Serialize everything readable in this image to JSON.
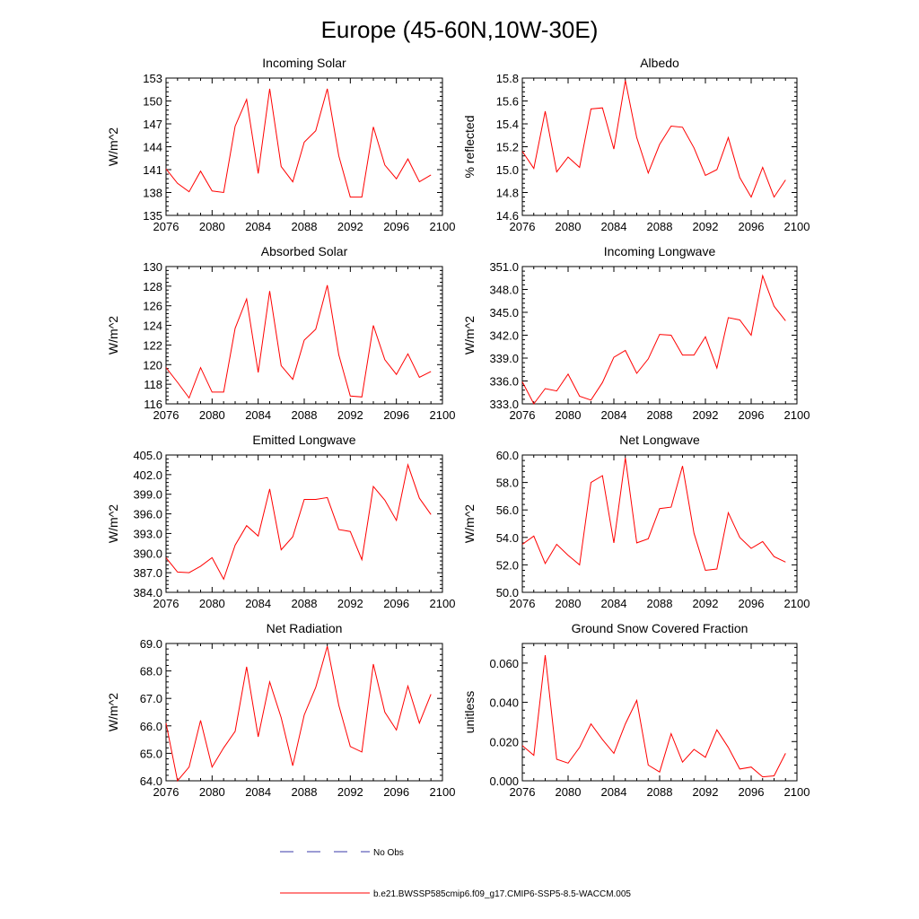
{
  "figure": {
    "title": "Europe (45-60N,10W-30E)",
    "legend": [
      {
        "label": "No Obs",
        "style": "dashed",
        "color": "#3a3aa8"
      },
      {
        "label": "b.e21.BWSSP585cmip6.f09_g17.CMIP6-SSP5-8.5-WACCM.005",
        "style": "solid",
        "color": "#ff0000"
      }
    ]
  },
  "chart_data": [
    {
      "type": "line",
      "title": "Incoming Solar",
      "xlabel": "",
      "ylabel": "W/m^2",
      "xlim": [
        2076,
        2100
      ],
      "ylim": [
        135,
        153
      ],
      "xticks": [
        "2076",
        "2080",
        "2084",
        "2088",
        "2092",
        "2096",
        "2100"
      ],
      "yticks": [
        "135",
        "138",
        "141",
        "144",
        "147",
        "150",
        "153"
      ],
      "x": [
        2076,
        2077,
        2078,
        2079,
        2080,
        2081,
        2082,
        2083,
        2084,
        2085,
        2086,
        2087,
        2088,
        2089,
        2090,
        2091,
        2092,
        2093,
        2094,
        2095,
        2096,
        2097,
        2098,
        2099
      ],
      "series": [
        {
          "name": "b.e21.BWSSP585cmip6.f09_g17.CMIP6-SSP5-8.5-WACCM.005",
          "values": [
            141.1,
            139.2,
            138.1,
            140.8,
            138.2,
            138.0,
            146.7,
            150.2,
            140.5,
            151.6,
            141.4,
            139.4,
            144.6,
            146.1,
            151.6,
            142.8,
            137.4,
            137.4,
            146.6,
            141.6,
            139.8,
            142.4,
            139.4,
            140.3
          ]
        }
      ]
    },
    {
      "type": "line",
      "title": "Albedo",
      "xlabel": "",
      "ylabel": "% reflected",
      "xlim": [
        2076,
        2100
      ],
      "ylim": [
        14.6,
        15.8
      ],
      "xticks": [
        "2076",
        "2080",
        "2084",
        "2088",
        "2092",
        "2096",
        "2100"
      ],
      "yticks": [
        "14.6",
        "14.8",
        "15.0",
        "15.2",
        "15.4",
        "15.6",
        "15.8"
      ],
      "x": [
        2076,
        2077,
        2078,
        2079,
        2080,
        2081,
        2082,
        2083,
        2084,
        2085,
        2086,
        2087,
        2088,
        2089,
        2090,
        2091,
        2092,
        2093,
        2094,
        2095,
        2096,
        2097,
        2098,
        2099
      ],
      "series": [
        {
          "name": "b.e21.BWSSP585cmip6.f09_g17.CMIP6-SSP5-8.5-WACCM.005",
          "values": [
            15.16,
            15.01,
            15.51,
            14.98,
            15.11,
            15.02,
            15.53,
            15.54,
            15.18,
            15.78,
            15.28,
            14.97,
            15.22,
            15.38,
            15.37,
            15.19,
            14.95,
            15.0,
            15.28,
            14.93,
            14.76,
            15.02,
            14.76,
            14.91
          ]
        }
      ]
    },
    {
      "type": "line",
      "title": "Absorbed Solar",
      "xlabel": "",
      "ylabel": "W/m^2",
      "xlim": [
        2076,
        2100
      ],
      "ylim": [
        116,
        130
      ],
      "xticks": [
        "2076",
        "2080",
        "2084",
        "2088",
        "2092",
        "2096",
        "2100"
      ],
      "yticks": [
        "116",
        "118",
        "120",
        "122",
        "124",
        "126",
        "128",
        "130"
      ],
      "x": [
        2076,
        2077,
        2078,
        2079,
        2080,
        2081,
        2082,
        2083,
        2084,
        2085,
        2086,
        2087,
        2088,
        2089,
        2090,
        2091,
        2092,
        2093,
        2094,
        2095,
        2096,
        2097,
        2098,
        2099
      ],
      "series": [
        {
          "name": "b.e21.BWSSP585cmip6.f09_g17.CMIP6-SSP5-8.5-WACCM.005",
          "values": [
            119.7,
            118.2,
            116.6,
            119.7,
            117.2,
            117.2,
            123.7,
            126.7,
            119.2,
            127.5,
            119.9,
            118.5,
            122.5,
            123.6,
            128.1,
            121.0,
            116.8,
            116.7,
            124.0,
            120.5,
            119.0,
            121.1,
            118.7,
            119.3
          ]
        }
      ]
    },
    {
      "type": "line",
      "title": "Incoming Longwave",
      "xlabel": "",
      "ylabel": "W/m^2",
      "xlim": [
        2076,
        2100
      ],
      "ylim": [
        333.0,
        351.0
      ],
      "xticks": [
        "2076",
        "2080",
        "2084",
        "2088",
        "2092",
        "2096",
        "2100"
      ],
      "yticks": [
        "333.0",
        "336.0",
        "339.0",
        "342.0",
        "345.0",
        "348.0",
        "351.0"
      ],
      "x": [
        2076,
        2077,
        2078,
        2079,
        2080,
        2081,
        2082,
        2083,
        2084,
        2085,
        2086,
        2087,
        2088,
        2089,
        2090,
        2091,
        2092,
        2093,
        2094,
        2095,
        2096,
        2097,
        2098,
        2099
      ],
      "series": [
        {
          "name": "b.e21.BWSSP585cmip6.f09_g17.CMIP6-SSP5-8.5-WACCM.005",
          "values": [
            335.9,
            333.0,
            335.0,
            334.7,
            336.9,
            334.0,
            333.5,
            335.8,
            339.1,
            340.0,
            337.0,
            338.9,
            342.1,
            342.0,
            339.4,
            339.4,
            341.8,
            337.7,
            344.3,
            344.0,
            342.0,
            349.8,
            345.8,
            343.9
          ]
        }
      ]
    },
    {
      "type": "line",
      "title": "Emitted Longwave",
      "xlabel": "",
      "ylabel": "W/m^2",
      "xlim": [
        2076,
        2100
      ],
      "ylim": [
        384.0,
        405.0
      ],
      "xticks": [
        "2076",
        "2080",
        "2084",
        "2088",
        "2092",
        "2096",
        "2100"
      ],
      "yticks": [
        "384.0",
        "387.0",
        "390.0",
        "393.0",
        "396.0",
        "399.0",
        "402.0",
        "405.0"
      ],
      "x": [
        2076,
        2077,
        2078,
        2079,
        2080,
        2081,
        2082,
        2083,
        2084,
        2085,
        2086,
        2087,
        2088,
        2089,
        2090,
        2091,
        2092,
        2093,
        2094,
        2095,
        2096,
        2097,
        2098,
        2099
      ],
      "series": [
        {
          "name": "b.e21.BWSSP585cmip6.f09_g17.CMIP6-SSP5-8.5-WACCM.005",
          "values": [
            389.3,
            387.1,
            387.0,
            388.0,
            389.3,
            386.0,
            391.2,
            394.2,
            392.6,
            399.8,
            390.5,
            392.5,
            398.2,
            398.2,
            398.5,
            393.6,
            393.3,
            389.0,
            400.2,
            398.1,
            395.0,
            403.5,
            398.4,
            395.9
          ]
        }
      ]
    },
    {
      "type": "line",
      "title": "Net Longwave",
      "xlabel": "",
      "ylabel": "W/m^2",
      "xlim": [
        2076,
        2100
      ],
      "ylim": [
        50.0,
        60.0
      ],
      "xticks": [
        "2076",
        "2080",
        "2084",
        "2088",
        "2092",
        "2096",
        "2100"
      ],
      "yticks": [
        "50.0",
        "52.0",
        "54.0",
        "56.0",
        "58.0",
        "60.0"
      ],
      "x": [
        2076,
        2077,
        2078,
        2079,
        2080,
        2081,
        2082,
        2083,
        2084,
        2085,
        2086,
        2087,
        2088,
        2089,
        2090,
        2091,
        2092,
        2093,
        2094,
        2095,
        2096,
        2097,
        2098,
        2099
      ],
      "series": [
        {
          "name": "b.e21.BWSSP585cmip6.f09_g17.CMIP6-SSP5-8.5-WACCM.005",
          "values": [
            53.5,
            54.1,
            52.1,
            53.5,
            52.7,
            52.0,
            58.0,
            58.5,
            53.6,
            59.8,
            53.6,
            53.9,
            56.1,
            56.2,
            59.2,
            54.3,
            51.6,
            51.7,
            55.8,
            54.0,
            53.2,
            53.7,
            52.6,
            52.2
          ]
        }
      ]
    },
    {
      "type": "line",
      "title": "Net Radiation",
      "xlabel": "",
      "ylabel": "W/m^2",
      "xlim": [
        2076,
        2100
      ],
      "ylim": [
        64.0,
        69.0
      ],
      "xticks": [
        "2076",
        "2080",
        "2084",
        "2088",
        "2092",
        "2096",
        "2100"
      ],
      "yticks": [
        "64.0",
        "65.0",
        "66.0",
        "67.0",
        "68.0",
        "69.0"
      ],
      "x": [
        2076,
        2077,
        2078,
        2079,
        2080,
        2081,
        2082,
        2083,
        2084,
        2085,
        2086,
        2087,
        2088,
        2089,
        2090,
        2091,
        2092,
        2093,
        2094,
        2095,
        2096,
        2097,
        2098,
        2099
      ],
      "series": [
        {
          "name": "b.e21.BWSSP585cmip6.f09_g17.CMIP6-SSP5-8.5-WACCM.005",
          "values": [
            66.1,
            64.0,
            64.5,
            66.2,
            64.5,
            65.2,
            65.8,
            68.15,
            65.6,
            67.6,
            66.3,
            64.55,
            66.4,
            67.4,
            68.9,
            66.75,
            65.25,
            65.05,
            68.25,
            66.5,
            65.85,
            67.45,
            66.1,
            67.15
          ]
        }
      ]
    },
    {
      "type": "line",
      "title": "Ground Snow Covered Fraction",
      "xlabel": "",
      "ylabel": "unitless",
      "xlim": [
        2076,
        2100
      ],
      "ylim": [
        0.0,
        0.07
      ],
      "xticks": [
        "2076",
        "2080",
        "2084",
        "2088",
        "2092",
        "2096",
        "2100"
      ],
      "yticks": [
        "0.000",
        "0.020",
        "0.040",
        "0.060"
      ],
      "ytickvals": [
        0.0,
        0.02,
        0.04,
        0.06
      ],
      "x": [
        2076,
        2077,
        2078,
        2079,
        2080,
        2081,
        2082,
        2083,
        2084,
        2085,
        2086,
        2087,
        2088,
        2089,
        2090,
        2091,
        2092,
        2093,
        2094,
        2095,
        2096,
        2097,
        2098,
        2099
      ],
      "series": [
        {
          "name": "b.e21.BWSSP585cmip6.f09_g17.CMIP6-SSP5-8.5-WACCM.005",
          "values": [
            0.018,
            0.013,
            0.064,
            0.011,
            0.009,
            0.017,
            0.029,
            0.021,
            0.014,
            0.029,
            0.041,
            0.008,
            0.0045,
            0.024,
            0.0095,
            0.016,
            0.012,
            0.026,
            0.017,
            0.006,
            0.007,
            0.002,
            0.0025,
            0.014
          ]
        }
      ]
    }
  ]
}
